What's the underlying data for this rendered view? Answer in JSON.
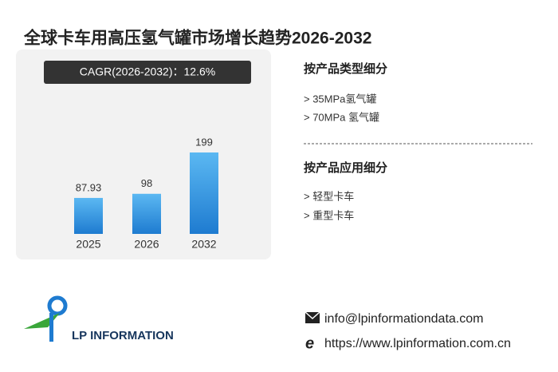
{
  "chart_data": {
    "type": "bar",
    "title": "全球卡车用高压氢气罐市场增长趋势2026-2032",
    "subtitle": "CAGR(2026-2032)：12.6%",
    "categories": [
      "2025",
      "2026",
      "2032"
    ],
    "values": [
      87.93,
      98,
      199
    ],
    "color": "#1e7bd0"
  },
  "segments": [
    {
      "heading": "按产品类型细分",
      "items": [
        "> 35MPa氢气罐",
        "> 70MPa 氢气罐"
      ]
    },
    {
      "heading": "按产品应用细分",
      "items": [
        "> 轻型卡车",
        "> 重型卡车"
      ]
    }
  ],
  "logo": {
    "text": "LP INFORMATION"
  },
  "contact": {
    "email": "info@lpinformationdata.com",
    "website": "https://www.lpinformation.com.cn"
  }
}
